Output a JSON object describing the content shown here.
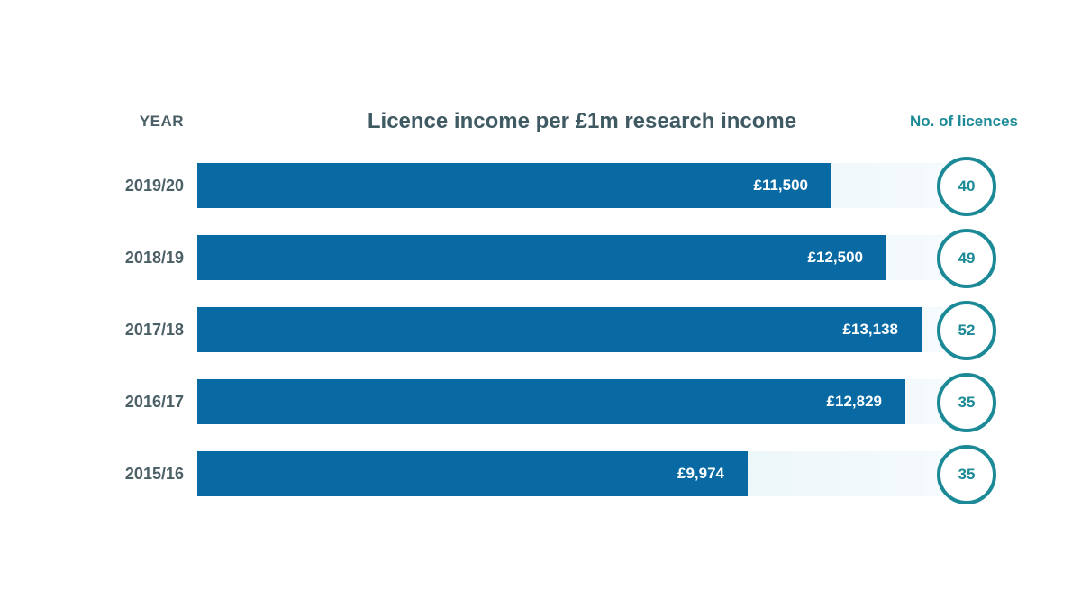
{
  "header": {
    "year_label": "YEAR",
    "title": "Licence income per £1m research income",
    "count_label": "No. of licences"
  },
  "colors": {
    "bar": "#0869a3",
    "accent": "#1b8a96",
    "text": "#4a5f66"
  },
  "chart_data": {
    "type": "bar",
    "orientation": "horizontal",
    "title": "Licence income per £1m research income",
    "categories": [
      "2019/20",
      "2018/19",
      "2017/18",
      "2016/17",
      "2015/16"
    ],
    "values": [
      11500,
      12500,
      13138,
      12829,
      9974
    ],
    "value_labels": [
      "£11,500",
      "£12,500",
      "£13,138",
      "£12,829",
      "£9,974"
    ],
    "licences": [
      "40",
      "49",
      "52",
      "35",
      "35"
    ],
    "xlim": [
      0,
      13800
    ],
    "grid": false,
    "legend": "none"
  }
}
